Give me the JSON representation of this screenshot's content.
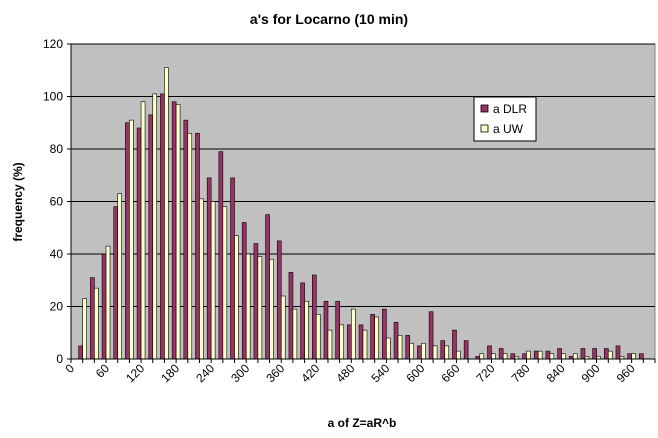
{
  "chart_data": {
    "type": "bar",
    "title": "a's for Locarno (10 min)",
    "xlabel": "a of Z=aR^b",
    "ylabel": "frequency (%)",
    "ylim": [
      0,
      120
    ],
    "yticks": [
      0,
      20,
      40,
      60,
      80,
      100,
      120
    ],
    "x_tick_labels": [
      "0",
      "60",
      "120",
      "180",
      "240",
      "300",
      "360",
      "420",
      "480",
      "540",
      "600",
      "660",
      "720",
      "780",
      "840",
      "900",
      "960"
    ],
    "x_tick_values": [
      0,
      60,
      120,
      180,
      240,
      300,
      360,
      420,
      480,
      540,
      600,
      660,
      720,
      780,
      840,
      900,
      960
    ],
    "bin_width": 20,
    "grid": "horizontal",
    "legend_position": "right",
    "colors": {
      "plot_bg": "#c0c0c0",
      "dlr": "#993366",
      "uw": "#ffffcc",
      "grid": "#000000"
    },
    "categories": [
      20,
      40,
      60,
      80,
      100,
      120,
      140,
      160,
      180,
      200,
      220,
      240,
      260,
      280,
      300,
      320,
      340,
      360,
      380,
      400,
      420,
      440,
      460,
      480,
      500,
      520,
      540,
      560,
      580,
      600,
      620,
      640,
      660,
      680,
      700,
      720,
      740,
      760,
      780,
      800,
      820,
      840,
      860,
      880,
      900,
      920,
      940,
      960,
      980
    ],
    "series": [
      {
        "name": "a DLR",
        "values": [
          5,
          31,
          40,
          58,
          90,
          88,
          93,
          101,
          98,
          91,
          86,
          69,
          79,
          69,
          52,
          44,
          55,
          45,
          33,
          29,
          32,
          22,
          22,
          13,
          13,
          17,
          19,
          14,
          9,
          5,
          18,
          7,
          11,
          7,
          1,
          5,
          4,
          2,
          2,
          3,
          3,
          4,
          1,
          4,
          4,
          4,
          5,
          2,
          2
        ]
      },
      {
        "name": "a UW",
        "values": [
          23,
          27,
          43,
          63,
          91,
          98,
          101,
          111,
          97,
          86,
          61,
          60,
          58,
          47,
          40,
          39,
          38,
          24,
          19,
          22,
          17,
          11,
          13,
          19,
          11,
          16,
          8,
          9,
          6,
          6,
          5,
          5,
          3,
          0,
          2,
          2,
          2,
          1,
          3,
          3,
          2,
          2,
          2,
          1,
          1,
          3,
          1,
          2,
          0
        ]
      }
    ]
  }
}
